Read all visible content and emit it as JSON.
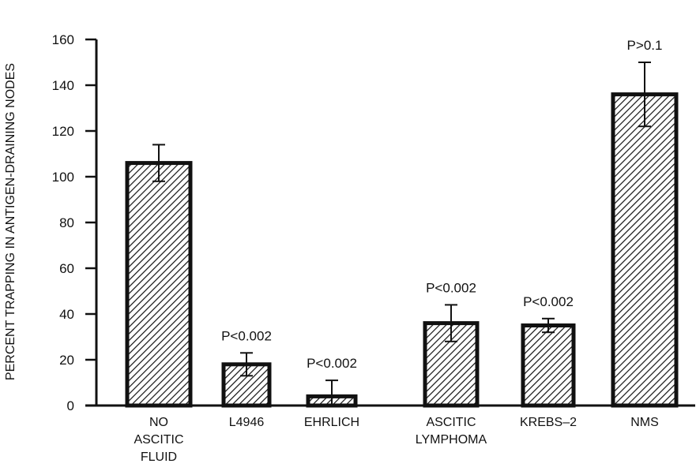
{
  "chart_data": {
    "type": "bar",
    "ylabel": "PERCENT TRAPPING IN ANTIGEN-DRAINING NODES",
    "xlabel": "",
    "ylim": [
      0,
      160
    ],
    "yticks": [
      0,
      20,
      40,
      60,
      80,
      100,
      120,
      140,
      160
    ],
    "grid": false,
    "categories": [
      [
        "NO",
        "ASCITIC",
        "FLUID"
      ],
      [
        "L4946"
      ],
      [
        "EHRLICH"
      ],
      [
        "ASCITIC",
        "LYMPHOMA"
      ],
      [
        "KREBS–2"
      ],
      [
        "NMS"
      ]
    ],
    "values": [
      106,
      18,
      4,
      36,
      35,
      136
    ],
    "errors": [
      8,
      5,
      7,
      8,
      3,
      14
    ],
    "annotations": [
      "",
      "P<0.002",
      "P<0.002",
      "P<0.002",
      "P<0.002",
      "P>0.1"
    ],
    "bar_color": "#111111"
  }
}
